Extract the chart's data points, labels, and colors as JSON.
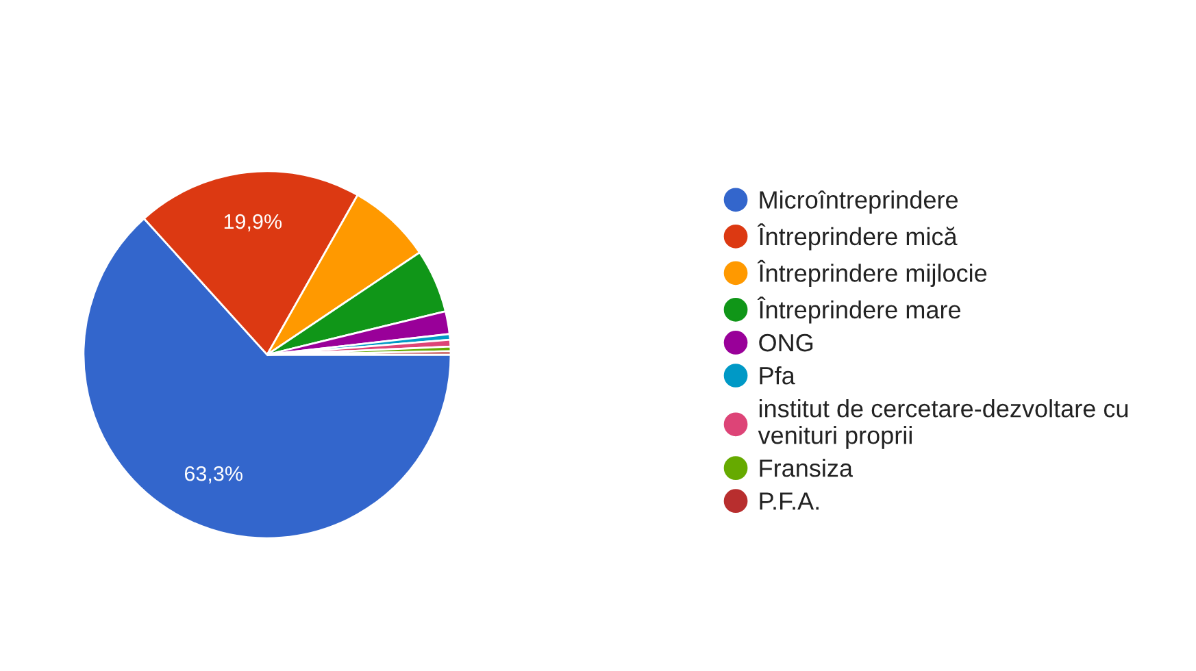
{
  "chart_data": {
    "type": "pie",
    "categories": [
      "Microîntreprindere",
      "Întreprindere mică",
      "Întreprindere mijlocie",
      "Întreprindere mare",
      "ONG",
      "Pfa",
      "institut de cercetare-dezvoltare cu venituri proprii",
      "Fransiza",
      "P.F.A."
    ],
    "values": [
      63.3,
      19.9,
      7.4,
      5.6,
      2.0,
      0.5,
      0.6,
      0.4,
      0.3
    ],
    "colors": [
      "#3366cc",
      "#dc3912",
      "#ff9900",
      "#109618",
      "#990099",
      "#0099c6",
      "#dd4477",
      "#66aa00",
      "#b82e2e"
    ],
    "value_labels": [
      "63,3%",
      "19,9%",
      null,
      null,
      null,
      null,
      null,
      null,
      null
    ],
    "legend": "right"
  }
}
